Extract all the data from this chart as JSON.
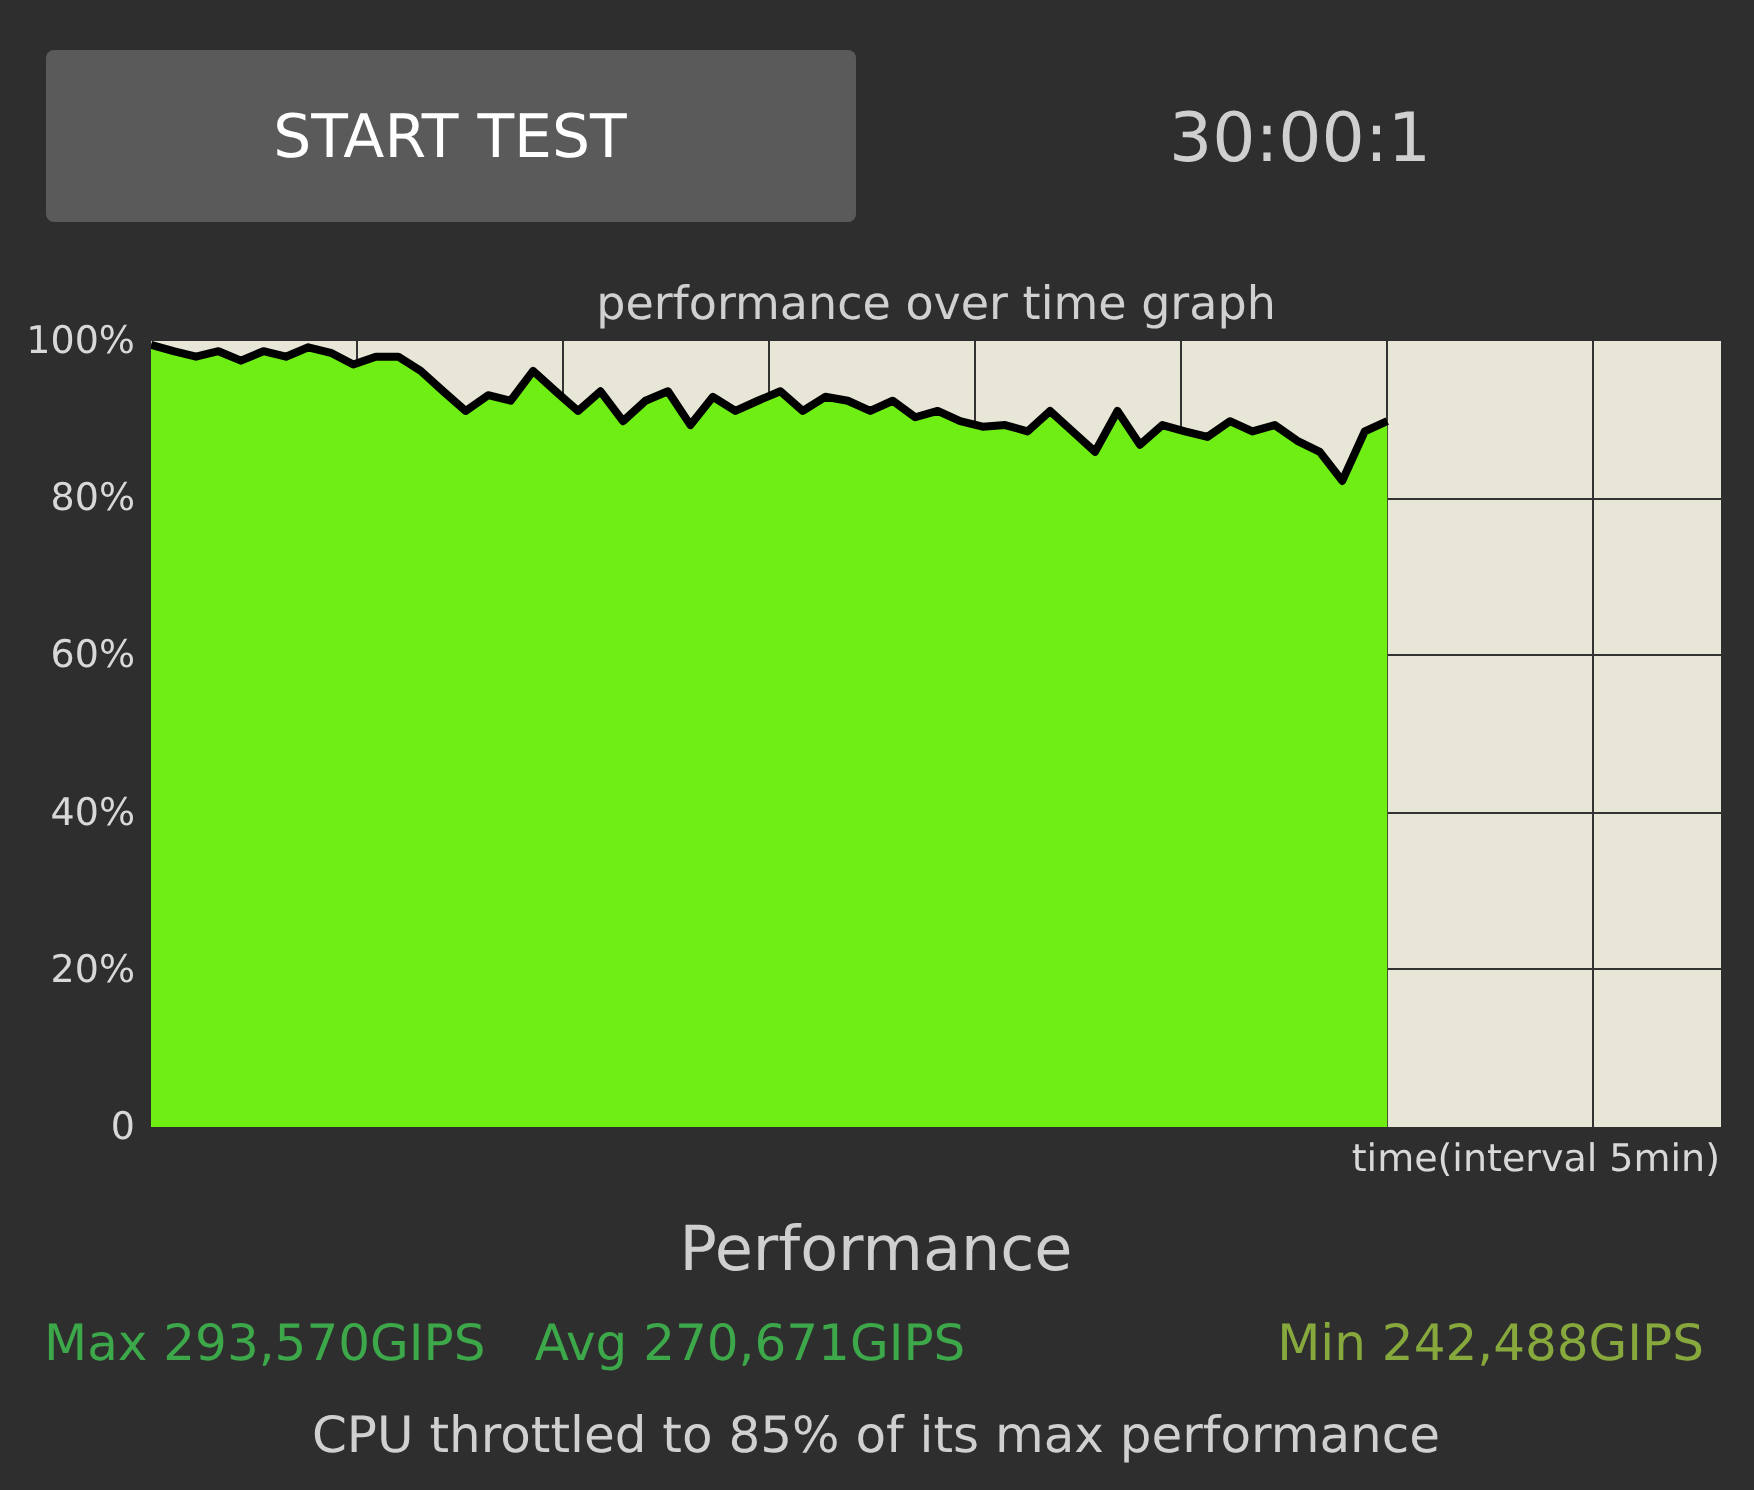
{
  "chart_data": {
    "type": "line",
    "title": "performance over time graph",
    "xlabel": "time(interval 5min)",
    "categories": [
      null,
      null,
      null,
      null,
      null,
      null,
      null,
      null,
      null,
      null,
      null,
      null,
      null,
      null,
      null,
      null,
      null,
      null,
      null,
      null,
      null,
      null,
      null,
      null,
      null,
      null,
      null,
      null,
      null,
      null,
      null,
      null,
      null,
      null,
      null,
      null,
      null,
      null,
      null,
      null,
      null,
      null,
      null,
      null,
      null,
      null,
      null,
      null,
      null,
      null,
      null,
      null,
      null,
      null,
      null,
      null
    ],
    "series": [
      {
        "color": "#000000",
        "values": [
          99.5,
          98.7,
          98.0,
          98.7,
          97.5,
          98.7,
          98.0,
          99.2,
          98.5,
          97.0,
          98.0,
          98.0,
          96.2,
          93.6,
          91.1,
          93.1,
          92.4,
          96.2,
          93.6,
          91.1,
          93.6,
          89.8,
          92.4,
          93.6,
          89.3,
          92.9,
          91.1,
          92.4,
          93.6,
          91.1,
          92.9,
          92.4,
          91.1,
          92.4,
          90.3,
          91.1,
          89.8,
          89.1,
          89.3,
          88.5,
          91.1,
          88.5,
          85.9,
          91.1,
          86.8,
          89.3,
          88.5,
          87.8,
          89.8,
          88.5,
          89.3,
          87.3,
          85.9,
          82.2,
          88.5,
          89.8
        ]
      }
    ],
    "ylim": [
      0,
      100
    ],
    "yticks": [
      {
        "value": 0,
        "label": "0"
      },
      {
        "value": 20,
        "label": "20%"
      },
      {
        "value": 40,
        "label": "40%"
      },
      {
        "value": 60,
        "label": "60%"
      },
      {
        "value": 80,
        "label": "80%"
      },
      {
        "value": 100,
        "label": "100%"
      }
    ],
    "tick_labels": "y",
    "grid": true,
    "annotations": [
      "START TEST",
      "30:00:1",
      "Performance",
      "Max 293,570GIPS",
      "Avg 270,671GIPS",
      "Min 242,488GIPS",
      "CPU throttled to 85% of its max performance"
    ]
  }
}
